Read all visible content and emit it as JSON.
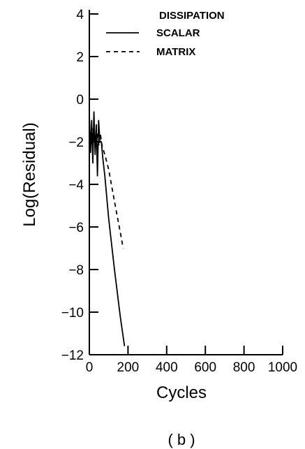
{
  "chart_data": {
    "type": "line",
    "xlabel": "Cycles",
    "ylabel": "Log(Residual)",
    "xlim": [
      0,
      1000
    ],
    "ylim": [
      -12,
      4
    ],
    "xticks": [
      0,
      200,
      400,
      600,
      800,
      1000
    ],
    "yticks": [
      4,
      2,
      0,
      -2,
      -4,
      -6,
      -8,
      -10,
      -12
    ],
    "grid": false,
    "legend": {
      "title": "DISSIPATION",
      "placement": "top-right"
    },
    "series": [
      {
        "name": "SCALAR",
        "style": "solid",
        "x": [
          0,
          6,
          12,
          18,
          24,
          30,
          36,
          42,
          48,
          55,
          62,
          70,
          80,
          100,
          130,
          160,
          182
        ],
        "y": [
          -0.7,
          -2.5,
          -1.0,
          -3.0,
          -0.6,
          -2.6,
          -1.2,
          -3.6,
          -1.0,
          -2.0,
          -2.0,
          -2.8,
          -3.6,
          -5.6,
          -8.0,
          -10.2,
          -11.6
        ]
      },
      {
        "name": "MATRIX",
        "style": "dashed",
        "x": [
          0,
          10,
          20,
          30,
          40,
          50,
          58,
          66,
          80,
          100,
          130,
          155,
          175
        ],
        "y": [
          -1.2,
          -2.2,
          -1.4,
          -2.2,
          -1.6,
          -2.2,
          -1.7,
          -2.2,
          -2.6,
          -3.3,
          -4.8,
          -6.0,
          -7.0
        ]
      }
    ]
  },
  "panel_label": "( b )"
}
